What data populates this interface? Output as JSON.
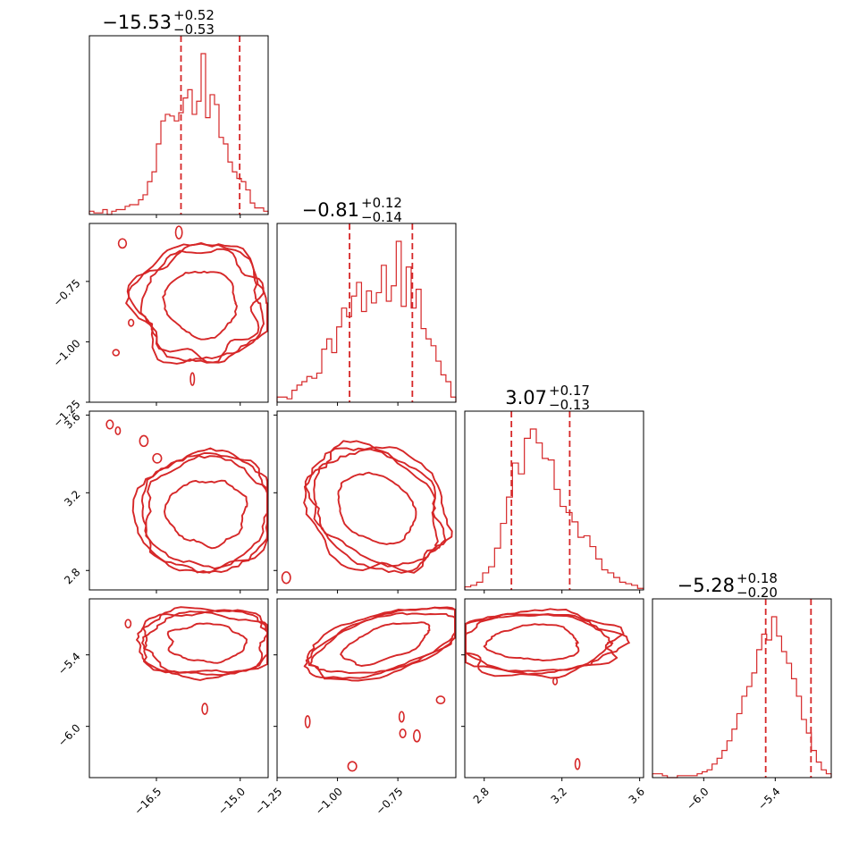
{
  "chart_data": {
    "type": "corner",
    "color": "#d62728",
    "parameters": [
      {
        "title": "−15.53",
        "err_plus": "+0.52",
        "err_minus": "−0.53",
        "median": -15.53,
        "q_low": -16.06,
        "q_high": -15.01,
        "range": [
          -17.7,
          -14.5
        ],
        "ticks": [
          -16.5,
          -15.0
        ],
        "tick_labels": [
          "−16.5",
          "−15.0"
        ],
        "hist": [
          2,
          1,
          1,
          3,
          0,
          2,
          3,
          3,
          5,
          6,
          6,
          9,
          12,
          20,
          26,
          43,
          57,
          61,
          60,
          57,
          62,
          71,
          76,
          61,
          69,
          98,
          59,
          73,
          67,
          47,
          43,
          32,
          26,
          22,
          20,
          15,
          7,
          4,
          4,
          2
        ]
      },
      {
        "title": "−0.81",
        "err_plus": "+0.12",
        "err_minus": "−0.14",
        "median": -0.81,
        "q_low": -0.95,
        "q_high": -0.69,
        "range": [
          -1.25,
          -0.51
        ],
        "ticks": [
          -1.25,
          -1.0,
          -0.75
        ],
        "tick_labels": [
          "−1.25",
          "−1.00",
          "−0.75"
        ],
        "hist": [
          3,
          3,
          2,
          7,
          10,
          12,
          15,
          14,
          17,
          31,
          37,
          29,
          44,
          55,
          50,
          62,
          70,
          53,
          65,
          58,
          64,
          80,
          59,
          68,
          94,
          56,
          79,
          55,
          66,
          43,
          37,
          33,
          24,
          16,
          12,
          3
        ]
      },
      {
        "title": "3.07",
        "err_plus": "+0.17",
        "err_minus": "−0.13",
        "median": 3.07,
        "q_low": 2.94,
        "q_high": 3.24,
        "range": [
          2.7,
          3.62
        ],
        "ticks": [
          2.8,
          3.2,
          3.6
        ],
        "tick_labels": [
          "2.8",
          "3.2",
          "3.6"
        ],
        "hist": [
          2,
          3,
          5,
          11,
          15,
          27,
          43,
          60,
          82,
          75,
          98,
          104,
          95,
          85,
          84,
          65,
          54,
          50,
          44,
          34,
          35,
          28,
          20,
          13,
          11,
          8,
          5,
          4,
          3,
          1
        ]
      },
      {
        "title": "−5.28",
        "err_plus": "+0.18",
        "err_minus": "−0.20",
        "median": -5.28,
        "q_low": -5.48,
        "q_high": -5.1,
        "range": [
          -6.43,
          -4.93
        ],
        "ticks": [
          -6.0,
          -5.4
        ],
        "tick_labels": [
          "−6.0",
          "−5.4"
        ],
        "hist": [
          2,
          2,
          1,
          0,
          0,
          1,
          1,
          1,
          1,
          2,
          3,
          4,
          7,
          10,
          14,
          19,
          25,
          33,
          42,
          47,
          54,
          66,
          74,
          71,
          83,
          73,
          65,
          59,
          51,
          42,
          30,
          23,
          14,
          8,
          4,
          2
        ]
      }
    ],
    "pairs": [
      {
        "x_param": 0,
        "y_param": 1,
        "center": [
          -15.7,
          -0.84
        ],
        "radii": [
          1.05,
          0.22
        ],
        "rotation_deg": 0
      },
      {
        "x_param": 0,
        "y_param": 2,
        "center": [
          -15.6,
          3.1
        ],
        "radii": [
          1.1,
          0.28
        ],
        "rotation_deg": 8
      },
      {
        "x_param": 1,
        "y_param": 2,
        "center": [
          -0.84,
          3.12
        ],
        "radii": [
          0.28,
          0.26
        ],
        "rotation_deg": -32
      },
      {
        "x_param": 0,
        "y_param": 3,
        "center": [
          -15.6,
          -5.3
        ],
        "radii": [
          1.1,
          0.26
        ],
        "rotation_deg": 0
      },
      {
        "x_param": 1,
        "y_param": 3,
        "center": [
          -0.8,
          -5.3
        ],
        "radii": [
          0.3,
          0.22
        ],
        "rotation_deg": 16
      },
      {
        "x_param": 2,
        "y_param": 3,
        "center": [
          3.06,
          -5.3
        ],
        "radii": [
          0.38,
          0.24
        ],
        "rotation_deg": 0
      }
    ]
  }
}
